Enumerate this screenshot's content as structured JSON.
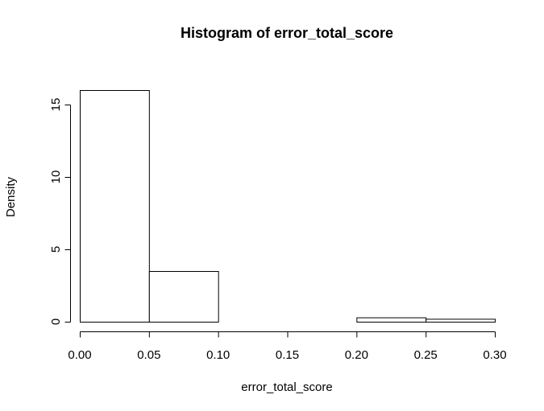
{
  "chart_data": {
    "type": "bar",
    "title": "Histogram of error_total_score",
    "xlabel": "error_total_score",
    "ylabel": "Density",
    "bins": [
      {
        "x0": 0.0,
        "x1": 0.05,
        "density": 16.0
      },
      {
        "x0": 0.05,
        "x1": 0.1,
        "density": 3.5
      },
      {
        "x0": 0.1,
        "x1": 0.15,
        "density": 0.0
      },
      {
        "x0": 0.15,
        "x1": 0.2,
        "density": 0.0
      },
      {
        "x0": 0.2,
        "x1": 0.25,
        "density": 0.3
      },
      {
        "x0": 0.25,
        "x1": 0.3,
        "density": 0.2
      }
    ],
    "x_ticks": [
      "0.00",
      "0.05",
      "0.10",
      "0.15",
      "0.20",
      "0.25",
      "0.30"
    ],
    "y_ticks": [
      "0",
      "5",
      "10",
      "15"
    ],
    "xlim": [
      0,
      0.3
    ],
    "ylim": [
      0,
      16
    ],
    "grid": false,
    "colors": {
      "bar_fill": "#ffffff",
      "bar_stroke": "#000000"
    }
  }
}
